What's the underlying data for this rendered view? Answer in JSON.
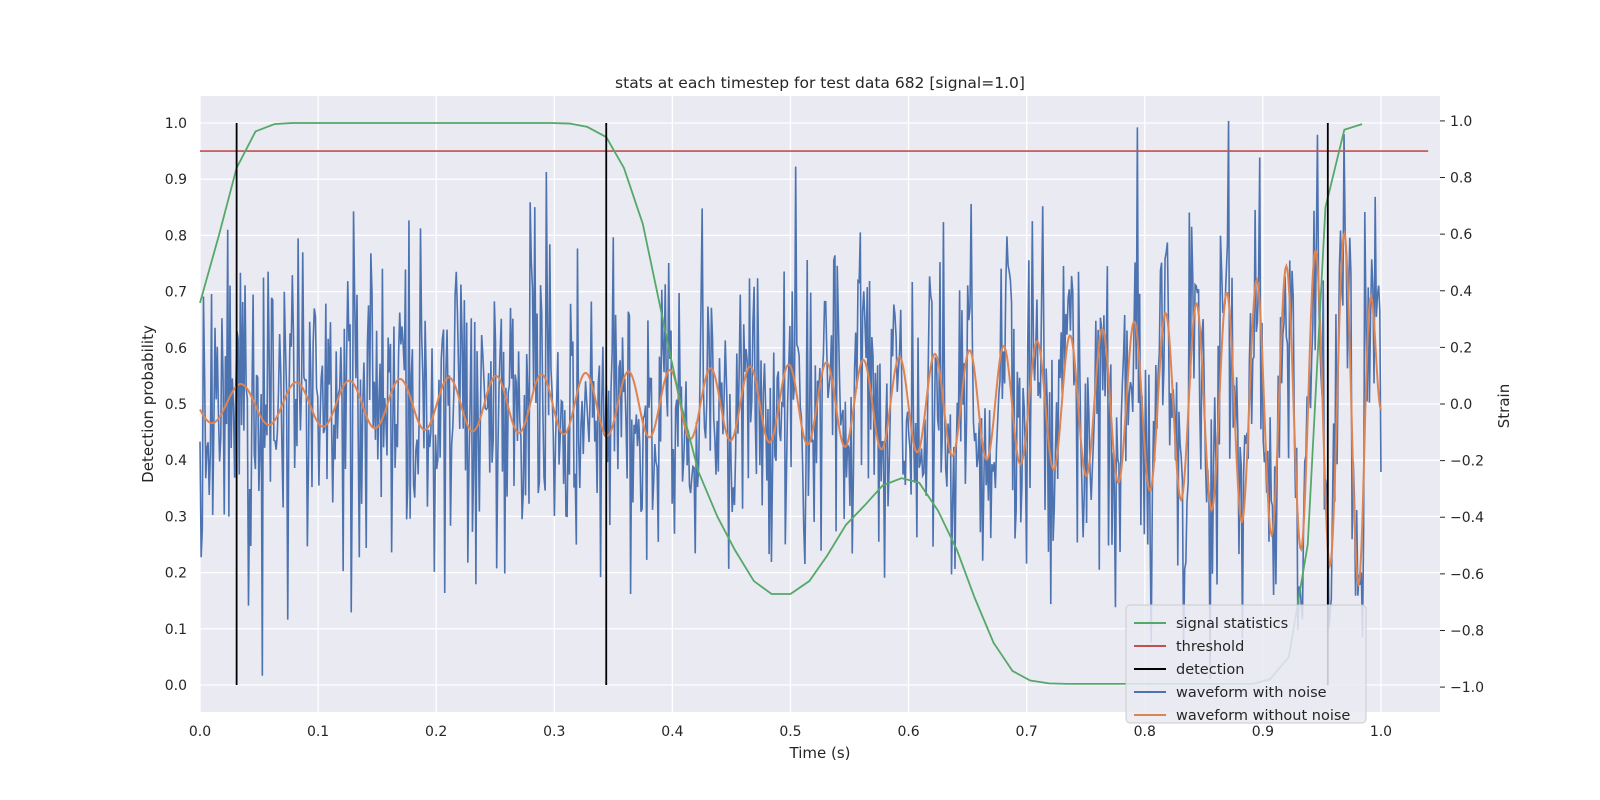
{
  "chart_data": {
    "type": "line",
    "title": "stats at each timestep for test data 682 [signal=1.0]",
    "xlabel": "Time (s)",
    "ylabel_left": "Detection probability",
    "ylabel_right": "Strain",
    "xlim": [
      0.0,
      1.05
    ],
    "ylim_left": [
      -0.048,
      1.048
    ],
    "ylim_right": [
      -1.088,
      1.088
    ],
    "xticks": [
      0.0,
      0.1,
      0.2,
      0.3,
      0.4,
      0.5,
      0.6,
      0.7,
      0.8,
      0.9,
      1.0
    ],
    "xtick_labels": [
      "0.0",
      "0.1",
      "0.2",
      "0.3",
      "0.4",
      "0.5",
      "0.6",
      "0.7",
      "0.8",
      "0.9",
      "1.0"
    ],
    "yticks_left": [
      0.0,
      0.1,
      0.2,
      0.3,
      0.4,
      0.5,
      0.6,
      0.7,
      0.8,
      0.9,
      1.0
    ],
    "ytick_labels_left": [
      "0.0",
      "0.1",
      "0.2",
      "0.3",
      "0.4",
      "0.5",
      "0.6",
      "0.7",
      "0.8",
      "0.9",
      "1.0"
    ],
    "yticks_right": [
      -1.0,
      -0.8,
      -0.6,
      -0.4,
      -0.2,
      0.0,
      0.2,
      0.4,
      0.6,
      0.8,
      1.0
    ],
    "ytick_labels_right": [
      "−1.0",
      "−0.8",
      "−0.6",
      "−0.4",
      "−0.2",
      "0.0",
      "0.2",
      "0.4",
      "0.6",
      "0.8",
      "1.0"
    ],
    "grid": true,
    "legend_position": "lower-right",
    "legend": [
      "signal statistics",
      "threshold",
      "detection",
      "waveform with noise",
      "waveform without noise"
    ],
    "colors": {
      "signal statistics": "#55a868",
      "threshold": "#c44e52",
      "detection": "#000000",
      "waveform with noise": "#4c72b0",
      "waveform without noise": "#dd8452",
      "plot_background": "#eaeaf2",
      "grid": "#ffffff"
    },
    "threshold": 0.95,
    "threshold_x_range": [
      0.0,
      1.04
    ],
    "detections": [
      0.031,
      0.344,
      0.955
    ],
    "detection_range": [
      0.0,
      1.0
    ],
    "signal_statistics": {
      "x": [
        0.0,
        0.016,
        0.031,
        0.047,
        0.063,
        0.078,
        0.094,
        0.109,
        0.125,
        0.141,
        0.156,
        0.172,
        0.188,
        0.203,
        0.219,
        0.234,
        0.25,
        0.266,
        0.281,
        0.297,
        0.313,
        0.328,
        0.344,
        0.359,
        0.375,
        0.391,
        0.406,
        0.422,
        0.438,
        0.453,
        0.469,
        0.484,
        0.5,
        0.516,
        0.531,
        0.547,
        0.563,
        0.578,
        0.594,
        0.609,
        0.625,
        0.641,
        0.656,
        0.672,
        0.688,
        0.703,
        0.719,
        0.734,
        0.75,
        0.766,
        0.781,
        0.797,
        0.813,
        0.828,
        0.844,
        0.859,
        0.875,
        0.891,
        0.906,
        0.922,
        0.938,
        0.953,
        0.969,
        0.984
      ],
      "y": [
        0.68,
        0.8,
        0.92,
        0.985,
        0.998,
        1.0,
        1.0,
        1.0,
        1.0,
        1.0,
        1.0,
        1.0,
        1.0,
        1.0,
        1.0,
        1.0,
        1.0,
        1.0,
        1.0,
        1.0,
        0.999,
        0.993,
        0.975,
        0.92,
        0.82,
        0.66,
        0.51,
        0.38,
        0.3,
        0.24,
        0.185,
        0.162,
        0.162,
        0.185,
        0.23,
        0.285,
        0.32,
        0.355,
        0.368,
        0.36,
        0.31,
        0.24,
        0.155,
        0.075,
        0.025,
        0.008,
        0.003,
        0.002,
        0.002,
        0.002,
        0.002,
        0.002,
        0.002,
        0.002,
        0.002,
        0.002,
        0.002,
        0.002,
        0.01,
        0.05,
        0.25,
        0.85,
        0.988,
        0.998
      ]
    },
    "waveform_without_noise": {
      "x_range": [
        0.0,
        1.0
      ],
      "description_points": "chirp"
    },
    "waveform_with_noise": {
      "x_range": [
        0.0,
        1.0
      ],
      "y_range": [
        -1.0,
        1.0
      ]
    }
  }
}
